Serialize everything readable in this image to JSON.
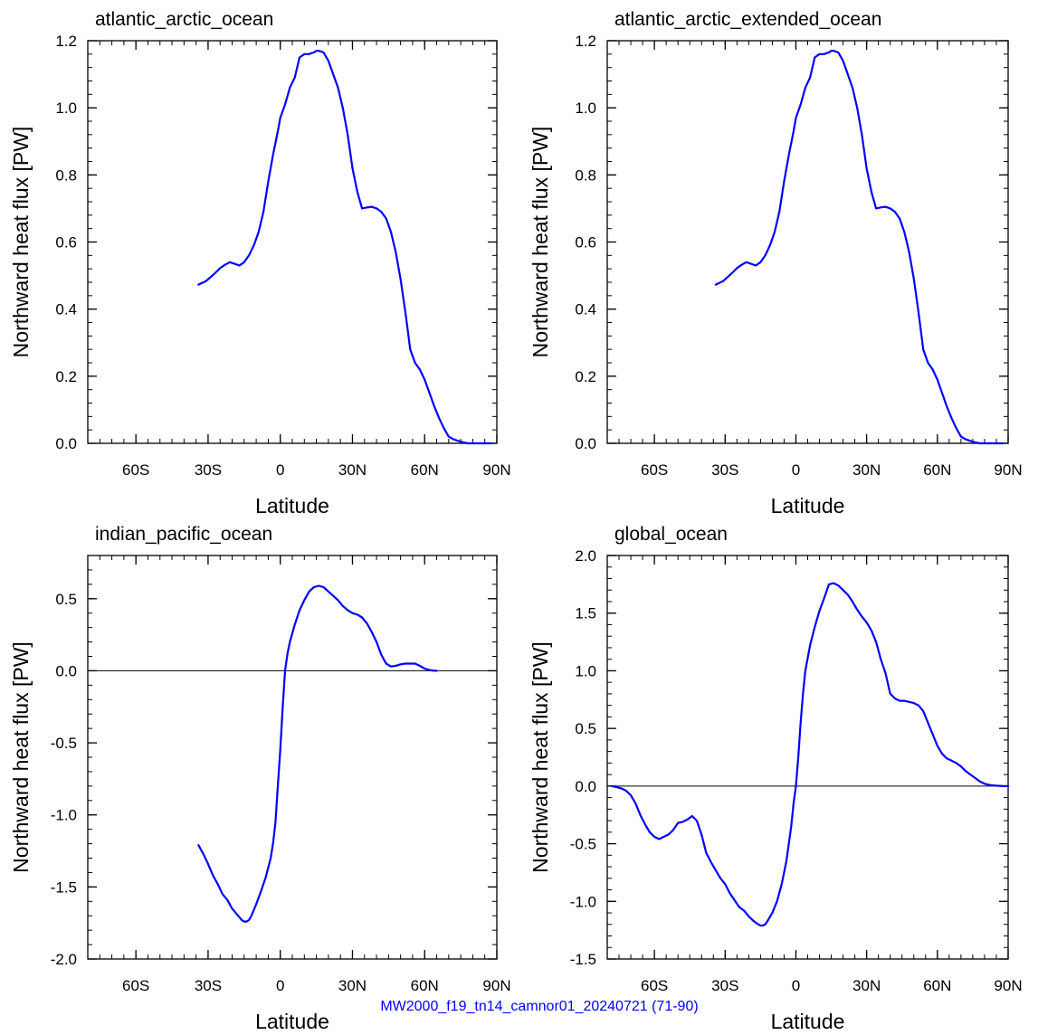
{
  "caption": "MW2000_f19_tn14_camnor01_20240721 (71-90)",
  "colors": {
    "series": "#0000ff",
    "axes": "#000000",
    "caption": "#0000ff"
  },
  "chart_data": [
    {
      "type": "line",
      "title": "atlantic_arctic_ocean",
      "xlabel": "Latitude",
      "ylabel": "Northward heat flux [PW]",
      "xlim": [
        -80,
        90
      ],
      "ylim": [
        0,
        1.2
      ],
      "zero_line": false,
      "xticks": [
        {
          "v": -60,
          "label": "60S"
        },
        {
          "v": -30,
          "label": "30S"
        },
        {
          "v": 0,
          "label": "0"
        },
        {
          "v": 30,
          "label": "30N"
        },
        {
          "v": 60,
          "label": "60N"
        },
        {
          "v": 90,
          "label": "90N"
        }
      ],
      "yticks": [
        {
          "v": 0,
          "label": "0.0"
        },
        {
          "v": 0.2,
          "label": "0.2"
        },
        {
          "v": 0.4,
          "label": "0.4"
        },
        {
          "v": 0.6,
          "label": "0.6"
        },
        {
          "v": 0.8,
          "label": "0.8"
        },
        {
          "v": 1.0,
          "label": "1.0"
        },
        {
          "v": 1.2,
          "label": "1.2"
        }
      ],
      "series": [
        {
          "x": [
            -34,
            -31,
            -29,
            -27,
            -25,
            -23,
            -21,
            -19,
            -17,
            -15,
            -13,
            -11,
            -9,
            -7,
            -5,
            -3,
            -1,
            0,
            2,
            4,
            6,
            8,
            10,
            12,
            13,
            14,
            15,
            16,
            18,
            20,
            22,
            24,
            26,
            28,
            30,
            32,
            34,
            36,
            38,
            40,
            42,
            44,
            46,
            48,
            50,
            52,
            54,
            56,
            58,
            60,
            62,
            64,
            66,
            68,
            70,
            72,
            74,
            76,
            78,
            80,
            82,
            84,
            86,
            88
          ],
          "y": [
            0.473,
            0.483,
            0.495,
            0.508,
            0.522,
            0.532,
            0.54,
            0.535,
            0.53,
            0.54,
            0.56,
            0.59,
            0.63,
            0.69,
            0.78,
            0.86,
            0.93,
            0.97,
            1.01,
            1.06,
            1.09,
            1.15,
            1.16,
            1.16,
            1.163,
            1.165,
            1.17,
            1.17,
            1.165,
            1.14,
            1.1,
            1.06,
            1.0,
            0.92,
            0.82,
            0.75,
            0.7,
            0.703,
            0.705,
            0.7,
            0.69,
            0.67,
            0.63,
            0.57,
            0.49,
            0.39,
            0.28,
            0.24,
            0.22,
            0.19,
            0.15,
            0.11,
            0.075,
            0.045,
            0.02,
            0.012,
            0.007,
            0.003,
            0.0,
            0.0,
            0.0,
            0.0,
            0.0,
            0.0
          ]
        }
      ]
    },
    {
      "type": "line",
      "title": "atlantic_arctic_extended_ocean",
      "xlabel": "Latitude",
      "ylabel": "Northward heat flux [PW]",
      "xlim": [
        -80,
        90
      ],
      "ylim": [
        0,
        1.2
      ],
      "zero_line": false,
      "xticks": [
        {
          "v": -60,
          "label": "60S"
        },
        {
          "v": -30,
          "label": "30S"
        },
        {
          "v": 0,
          "label": "0"
        },
        {
          "v": 30,
          "label": "30N"
        },
        {
          "v": 60,
          "label": "60N"
        },
        {
          "v": 90,
          "label": "90N"
        }
      ],
      "yticks": [
        {
          "v": 0,
          "label": "0.0"
        },
        {
          "v": 0.2,
          "label": "0.2"
        },
        {
          "v": 0.4,
          "label": "0.4"
        },
        {
          "v": 0.6,
          "label": "0.6"
        },
        {
          "v": 0.8,
          "label": "0.8"
        },
        {
          "v": 1.0,
          "label": "1.0"
        },
        {
          "v": 1.2,
          "label": "1.2"
        }
      ],
      "series": [
        {
          "x": [
            -34,
            -31,
            -29,
            -27,
            -25,
            -23,
            -21,
            -19,
            -17,
            -15,
            -13,
            -11,
            -9,
            -7,
            -5,
            -3,
            -1,
            0,
            2,
            4,
            6,
            8,
            10,
            12,
            13,
            14,
            15,
            16,
            18,
            20,
            22,
            24,
            26,
            28,
            30,
            32,
            34,
            36,
            38,
            40,
            42,
            44,
            46,
            48,
            50,
            52,
            54,
            56,
            58,
            60,
            62,
            64,
            66,
            68,
            70,
            72,
            74,
            76,
            78,
            80,
            82,
            84,
            86,
            88
          ],
          "y": [
            0.473,
            0.483,
            0.495,
            0.508,
            0.522,
            0.532,
            0.54,
            0.535,
            0.53,
            0.54,
            0.56,
            0.59,
            0.63,
            0.69,
            0.78,
            0.86,
            0.93,
            0.97,
            1.01,
            1.06,
            1.09,
            1.15,
            1.16,
            1.16,
            1.163,
            1.165,
            1.17,
            1.17,
            1.165,
            1.14,
            1.1,
            1.06,
            1.0,
            0.92,
            0.82,
            0.75,
            0.7,
            0.703,
            0.705,
            0.7,
            0.69,
            0.67,
            0.63,
            0.57,
            0.49,
            0.39,
            0.28,
            0.24,
            0.22,
            0.19,
            0.15,
            0.11,
            0.075,
            0.045,
            0.02,
            0.012,
            0.007,
            0.003,
            0.0,
            0.0,
            0.0,
            0.0,
            0.0,
            0.0
          ]
        }
      ]
    },
    {
      "type": "line",
      "title": "indian_pacific_ocean",
      "xlabel": "Latitude",
      "ylabel": "Northward heat flux [PW]",
      "xlim": [
        -80,
        90
      ],
      "ylim": [
        -2.0,
        0.8
      ],
      "zero_line": true,
      "xticks": [
        {
          "v": -60,
          "label": "60S"
        },
        {
          "v": -30,
          "label": "30S"
        },
        {
          "v": 0,
          "label": "0"
        },
        {
          "v": 30,
          "label": "30N"
        },
        {
          "v": 60,
          "label": "60N"
        },
        {
          "v": 90,
          "label": "90N"
        }
      ],
      "yticks": [
        {
          "v": -2.0,
          "label": "-2.0"
        },
        {
          "v": -1.5,
          "label": "-1.5"
        },
        {
          "v": -1.0,
          "label": "-1.0"
        },
        {
          "v": -0.5,
          "label": "-0.5"
        },
        {
          "v": 0.0,
          "label": "0.0"
        },
        {
          "v": 0.5,
          "label": "0.5"
        }
      ],
      "series": [
        {
          "x": [
            -34,
            -32,
            -30,
            -28,
            -26,
            -24,
            -22,
            -20,
            -18,
            -16,
            -15,
            -14,
            -13,
            -12,
            -10,
            -8,
            -6,
            -4,
            -3,
            -2,
            -1,
            0,
            1,
            2,
            3,
            4,
            6,
            8,
            10,
            12,
            14,
            16,
            18,
            20,
            22,
            24,
            26,
            28,
            30,
            32,
            34,
            36,
            38,
            40,
            42,
            44,
            46,
            48,
            50,
            52,
            54,
            56,
            58,
            60,
            62,
            64,
            65
          ],
          "y": [
            -1.21,
            -1.27,
            -1.34,
            -1.42,
            -1.48,
            -1.55,
            -1.59,
            -1.65,
            -1.69,
            -1.73,
            -1.74,
            -1.74,
            -1.73,
            -1.7,
            -1.62,
            -1.53,
            -1.43,
            -1.3,
            -1.2,
            -1.05,
            -0.8,
            -0.55,
            -0.25,
            0.0,
            0.12,
            0.2,
            0.32,
            0.42,
            0.49,
            0.55,
            0.58,
            0.59,
            0.58,
            0.55,
            0.52,
            0.49,
            0.45,
            0.42,
            0.4,
            0.39,
            0.37,
            0.33,
            0.27,
            0.2,
            0.11,
            0.05,
            0.03,
            0.035,
            0.045,
            0.05,
            0.05,
            0.05,
            0.035,
            0.015,
            0.005,
            0.0,
            0.0
          ]
        }
      ]
    },
    {
      "type": "line",
      "title": "global_ocean",
      "xlabel": "Latitude",
      "ylabel": "Northward heat flux [PW]",
      "xlim": [
        -80,
        90
      ],
      "ylim": [
        -1.5,
        2.0
      ],
      "zero_line": true,
      "xticks": [
        {
          "v": -60,
          "label": "60S"
        },
        {
          "v": -30,
          "label": "30S"
        },
        {
          "v": 0,
          "label": "0"
        },
        {
          "v": 30,
          "label": "30N"
        },
        {
          "v": 60,
          "label": "60N"
        },
        {
          "v": 90,
          "label": "90N"
        }
      ],
      "yticks": [
        {
          "v": -1.5,
          "label": "-1.5"
        },
        {
          "v": -1.0,
          "label": "-1.0"
        },
        {
          "v": -0.5,
          "label": "-0.5"
        },
        {
          "v": 0.0,
          "label": "0.0"
        },
        {
          "v": 0.5,
          "label": "0.5"
        },
        {
          "v": 1.0,
          "label": "1.0"
        },
        {
          "v": 1.5,
          "label": "1.5"
        },
        {
          "v": 2.0,
          "label": "2.0"
        }
      ],
      "series": [
        {
          "x": [
            -78,
            -76,
            -74,
            -72,
            -70,
            -68,
            -66,
            -64,
            -62,
            -60,
            -58,
            -56,
            -54,
            -52,
            -50,
            -48,
            -46,
            -44,
            -42,
            -40,
            -38,
            -36,
            -34,
            -32,
            -30,
            -28,
            -26,
            -24,
            -22,
            -20,
            -18,
            -16,
            -15,
            -14,
            -13,
            -12,
            -10,
            -8,
            -6,
            -4,
            -2,
            -1,
            0,
            1,
            2,
            3,
            4,
            6,
            8,
            10,
            12,
            14,
            16,
            18,
            20,
            22,
            24,
            26,
            28,
            30,
            32,
            34,
            36,
            38,
            40,
            42,
            44,
            46,
            48,
            50,
            52,
            54,
            56,
            58,
            60,
            62,
            64,
            66,
            68,
            70,
            72,
            74,
            76,
            78,
            80,
            82,
            84,
            86,
            88,
            90
          ],
          "y": [
            0.0,
            -0.01,
            -0.02,
            -0.04,
            -0.08,
            -0.15,
            -0.25,
            -0.33,
            -0.4,
            -0.44,
            -0.46,
            -0.44,
            -0.42,
            -0.38,
            -0.32,
            -0.31,
            -0.29,
            -0.26,
            -0.3,
            -0.42,
            -0.58,
            -0.66,
            -0.73,
            -0.8,
            -0.85,
            -0.93,
            -0.99,
            -1.05,
            -1.08,
            -1.13,
            -1.17,
            -1.2,
            -1.21,
            -1.21,
            -1.2,
            -1.17,
            -1.1,
            -1.0,
            -0.85,
            -0.65,
            -0.35,
            -0.15,
            0.0,
            0.25,
            0.55,
            0.8,
            1.0,
            1.22,
            1.38,
            1.52,
            1.63,
            1.75,
            1.76,
            1.74,
            1.7,
            1.66,
            1.6,
            1.53,
            1.47,
            1.42,
            1.35,
            1.25,
            1.1,
            0.98,
            0.8,
            0.76,
            0.74,
            0.74,
            0.73,
            0.72,
            0.7,
            0.65,
            0.55,
            0.45,
            0.35,
            0.28,
            0.24,
            0.22,
            0.2,
            0.17,
            0.13,
            0.1,
            0.07,
            0.04,
            0.02,
            0.01,
            0.005,
            0.002,
            0.0,
            0.0
          ]
        }
      ]
    }
  ]
}
